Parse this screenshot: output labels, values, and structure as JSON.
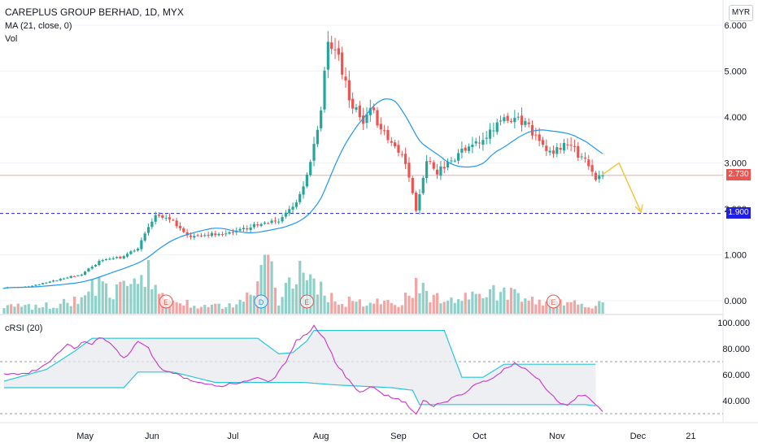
{
  "header": {
    "title": "CAREPLUS GROUP BERHAD, 1D, MYX",
    "ma_legend": "MA (21, close, 0)",
    "vol_legend": "Vol",
    "crsi_legend": "cRSI (20)",
    "currency_button": "MYR"
  },
  "price_tags": {
    "last": "2.730",
    "level": "1.900"
  },
  "colors": {
    "up": "#26a69a",
    "down": "#ef5350",
    "vol_up": "#8fd0c8",
    "vol_down": "#f4a5a3",
    "ma": "#2196f3",
    "crsi_line": "#cc33cc",
    "band": "#26c6da",
    "level": "#2020e0",
    "arrow": "#f2c744"
  },
  "event_markers": [
    {
      "letter": "E",
      "index": 46,
      "type": "earnings"
    },
    {
      "letter": "D",
      "index": 73,
      "type": "dividend"
    },
    {
      "letter": "E",
      "index": 86,
      "type": "earnings"
    },
    {
      "letter": "E",
      "index": 156,
      "type": "earnings"
    }
  ],
  "chart_data": {
    "type": "candlestick",
    "title": "CAREPLUS GROUP BERHAD, 1D, MYX",
    "price_axis": {
      "ticks": [
        "0.000",
        "1.000",
        "2.000",
        "3.000",
        "4.000",
        "5.000",
        "6.000"
      ],
      "ylim": [
        -0.15,
        6.1
      ],
      "currency": "MYR"
    },
    "crsi_axis": {
      "ticks": [
        "40.000",
        "60.000",
        "80.000",
        "100.000"
      ],
      "ylim": [
        25,
        100
      ],
      "guides": [
        30,
        70
      ]
    },
    "x_ticks": [
      {
        "label": "May",
        "index": 23
      },
      {
        "label": "Jun",
        "index": 42
      },
      {
        "label": "Jul",
        "index": 65
      },
      {
        "label": "Aug",
        "index": 90
      },
      {
        "label": "Sep",
        "index": 112
      },
      {
        "label": "Oct",
        "index": 135
      },
      {
        "label": "Nov",
        "index": 157
      },
      {
        "label": "Dec",
        "index": 180
      },
      {
        "label": "21",
        "index": 195
      }
    ],
    "horizontal_levels": [
      1.9
    ],
    "last_price": 2.73,
    "price_keyframes": [
      [
        0,
        0.28
      ],
      [
        8,
        0.32
      ],
      [
        15,
        0.45
      ],
      [
        22,
        0.58
      ],
      [
        28,
        0.9
      ],
      [
        34,
        0.95
      ],
      [
        38,
        1.15
      ],
      [
        43,
        1.85
      ],
      [
        47,
        1.8
      ],
      [
        52,
        1.4
      ],
      [
        58,
        1.45
      ],
      [
        65,
        1.5
      ],
      [
        72,
        1.65
      ],
      [
        78,
        1.75
      ],
      [
        83,
        2.1
      ],
      [
        87,
        3.0
      ],
      [
        90,
        4.2
      ],
      [
        92,
        5.6
      ],
      [
        95,
        5.3
      ],
      [
        98,
        4.4
      ],
      [
        102,
        3.9
      ],
      [
        104,
        4.3
      ],
      [
        106,
        3.8
      ],
      [
        110,
        3.5
      ],
      [
        114,
        3.0
      ],
      [
        117,
        1.95
      ],
      [
        120,
        3.1
      ],
      [
        123,
        2.8
      ],
      [
        127,
        3.05
      ],
      [
        132,
        3.4
      ],
      [
        136,
        3.5
      ],
      [
        142,
        3.95
      ],
      [
        148,
        3.9
      ],
      [
        152,
        3.4
      ],
      [
        156,
        3.2
      ],
      [
        160,
        3.45
      ],
      [
        164,
        3.1
      ],
      [
        166,
        2.95
      ],
      [
        168,
        2.6
      ],
      [
        170,
        2.73
      ]
    ],
    "volume_keyframes": [
      [
        0,
        0.15
      ],
      [
        10,
        0.15
      ],
      [
        20,
        0.25
      ],
      [
        26,
        0.6
      ],
      [
        30,
        0.4
      ],
      [
        36,
        0.55
      ],
      [
        39,
        0.9
      ],
      [
        41,
        0.8
      ],
      [
        44,
        0.35
      ],
      [
        55,
        0.2
      ],
      [
        65,
        0.15
      ],
      [
        70,
        0.4
      ],
      [
        75,
        1.1
      ],
      [
        78,
        0.3
      ],
      [
        82,
        0.85
      ],
      [
        86,
        0.75
      ],
      [
        90,
        0.5
      ],
      [
        95,
        0.25
      ],
      [
        105,
        0.25
      ],
      [
        112,
        0.2
      ],
      [
        115,
        0.45
      ],
      [
        118,
        0.6
      ],
      [
        122,
        0.35
      ],
      [
        128,
        0.3
      ],
      [
        135,
        0.35
      ],
      [
        140,
        0.45
      ],
      [
        146,
        0.35
      ],
      [
        150,
        0.25
      ],
      [
        160,
        0.2
      ],
      [
        170,
        0.2
      ]
    ],
    "crsi_keyframes": [
      [
        0,
        61
      ],
      [
        5,
        60
      ],
      [
        10,
        64
      ],
      [
        15,
        75
      ],
      [
        18,
        83
      ],
      [
        20,
        80
      ],
      [
        23,
        86
      ],
      [
        25,
        84
      ],
      [
        28,
        89
      ],
      [
        31,
        82
      ],
      [
        34,
        72
      ],
      [
        36,
        78
      ],
      [
        38,
        86
      ],
      [
        41,
        80
      ],
      [
        43,
        70
      ],
      [
        46,
        62
      ],
      [
        49,
        60
      ],
      [
        52,
        57
      ],
      [
        55,
        54
      ],
      [
        58,
        52
      ],
      [
        61,
        51
      ],
      [
        64,
        53
      ],
      [
        67,
        54
      ],
      [
        72,
        57
      ],
      [
        76,
        55
      ],
      [
        80,
        70
      ],
      [
        83,
        86
      ],
      [
        86,
        92
      ],
      [
        88,
        97
      ],
      [
        91,
        88
      ],
      [
        94,
        70
      ],
      [
        98,
        55
      ],
      [
        101,
        46
      ],
      [
        104,
        51
      ],
      [
        106,
        48
      ],
      [
        108,
        44
      ],
      [
        111,
        42
      ],
      [
        114,
        38
      ],
      [
        116,
        33
      ],
      [
        117,
        29
      ],
      [
        119,
        40
      ],
      [
        122,
        36
      ],
      [
        126,
        40
      ],
      [
        130,
        45
      ],
      [
        134,
        52
      ],
      [
        138,
        56
      ],
      [
        142,
        64
      ],
      [
        145,
        69
      ],
      [
        148,
        64
      ],
      [
        152,
        56
      ],
      [
        155,
        45
      ],
      [
        158,
        38
      ],
      [
        160,
        36
      ],
      [
        163,
        43
      ],
      [
        165,
        45
      ],
      [
        168,
        37
      ],
      [
        170,
        31
      ]
    ],
    "band_upper_keyframes": [
      [
        0,
        55
      ],
      [
        12,
        64
      ],
      [
        20,
        78
      ],
      [
        25,
        88
      ],
      [
        60,
        88
      ],
      [
        72,
        88
      ],
      [
        78,
        76
      ],
      [
        82,
        77
      ],
      [
        86,
        86
      ],
      [
        88,
        94
      ],
      [
        125,
        94
      ],
      [
        130,
        58
      ],
      [
        136,
        58
      ],
      [
        142,
        68
      ],
      [
        165,
        68
      ]
    ],
    "band_lower_keyframes": [
      [
        0,
        50
      ],
      [
        25,
        50
      ],
      [
        34,
        50
      ],
      [
        38,
        62
      ],
      [
        48,
        62
      ],
      [
        60,
        54
      ],
      [
        70,
        54
      ],
      [
        85,
        54
      ],
      [
        95,
        52
      ],
      [
        110,
        50
      ],
      [
        116,
        48
      ],
      [
        118,
        37
      ],
      [
        130,
        37
      ],
      [
        145,
        37
      ],
      [
        165,
        37
      ],
      [
        168,
        36
      ]
    ],
    "ma_period": 21,
    "crsi_period": 20
  }
}
